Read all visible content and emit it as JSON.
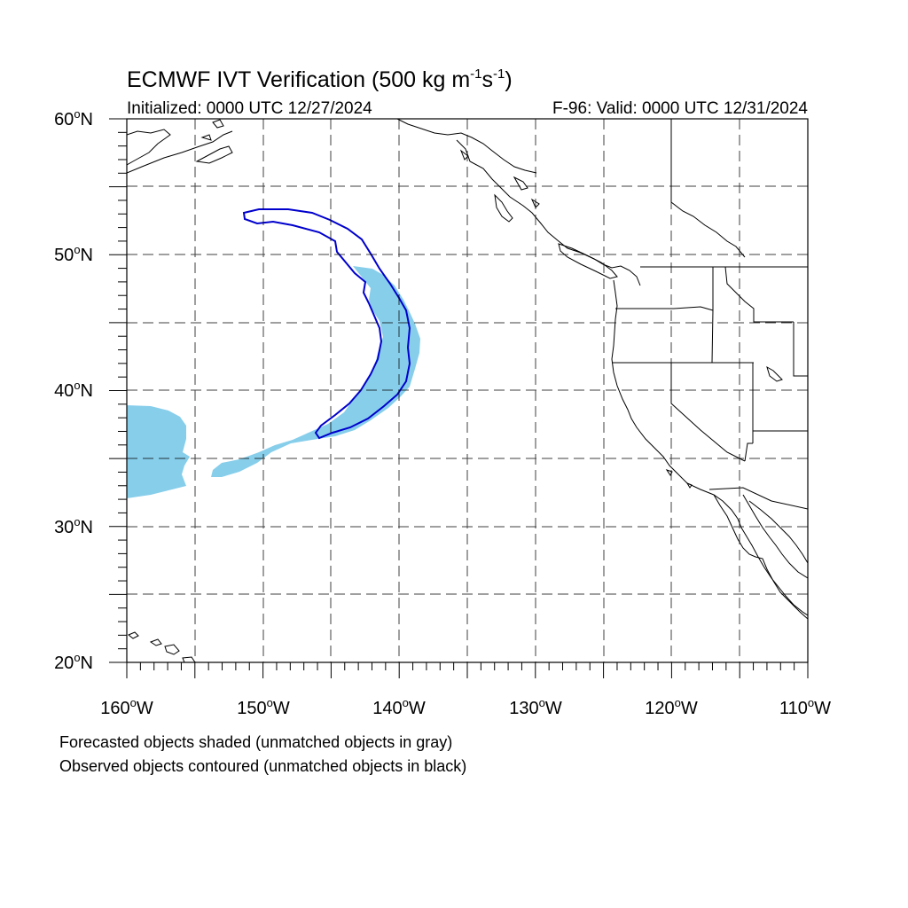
{
  "header": {
    "title_main": "ECMWF IVT Verification (500 kg m",
    "title_sup1": "-1",
    "title_mid": "s",
    "title_sup2": "-1",
    "title_end": ")",
    "initialized": "Initialized: 0000 UTC 12/27/2024",
    "valid": "F-96: Valid: 0000 UTC 12/31/2024"
  },
  "axes": {
    "lat_labels": [
      {
        "base": "60",
        "deg": "o",
        "hem": "N"
      },
      {
        "base": "50",
        "deg": "o",
        "hem": "N"
      },
      {
        "base": "40",
        "deg": "o",
        "hem": "N"
      },
      {
        "base": "30",
        "deg": "o",
        "hem": "N"
      },
      {
        "base": "20",
        "deg": "o",
        "hem": "N"
      }
    ],
    "lon_labels": [
      {
        "base": "160",
        "deg": "o",
        "hem": "W"
      },
      {
        "base": "150",
        "deg": "o",
        "hem": "W"
      },
      {
        "base": "140",
        "deg": "o",
        "hem": "W"
      },
      {
        "base": "130",
        "deg": "o",
        "hem": "W"
      },
      {
        "base": "120",
        "deg": "o",
        "hem": "W"
      },
      {
        "base": "110",
        "deg": "o",
        "hem": "W"
      }
    ],
    "lon_range": [
      -160,
      -110
    ],
    "lat_range": [
      20,
      60
    ],
    "grid_spacing_deg": 5
  },
  "footer": {
    "line1": "Forecasted objects shaded (unmatched objects in gray)",
    "line2": "Observed objects contoured (unmatched objects in black)"
  },
  "colors": {
    "forecast_fill": "#87ceeb",
    "observed_contour": "#0000cd",
    "coastline": "#000000"
  }
}
